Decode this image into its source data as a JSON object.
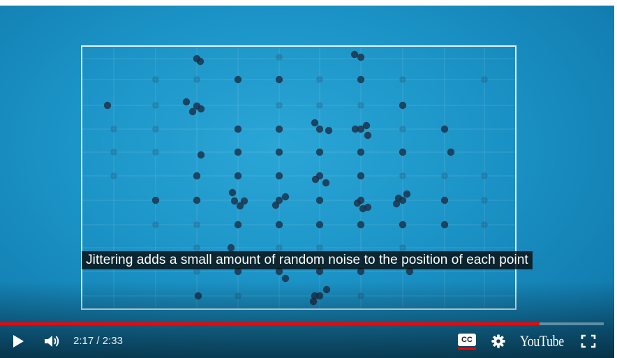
{
  "video": {
    "subtitle": "Jittering adds a small amount of random noise to the position of each point"
  },
  "playback": {
    "current_time": "2:17",
    "separator": " / ",
    "duration": "2:33",
    "progress_fraction": 0.894
  },
  "controls": {
    "cc_label": "CC",
    "logo_text": "YouTube"
  },
  "colors": {
    "accent": "#ff0000",
    "video_bg": "#1b93c6",
    "point": "#1b2f48",
    "frame": "#e4f2f8"
  },
  "icons": [
    "play-icon",
    "volume-icon",
    "cc-icon",
    "gear-icon",
    "fullscreen-icon"
  ]
}
